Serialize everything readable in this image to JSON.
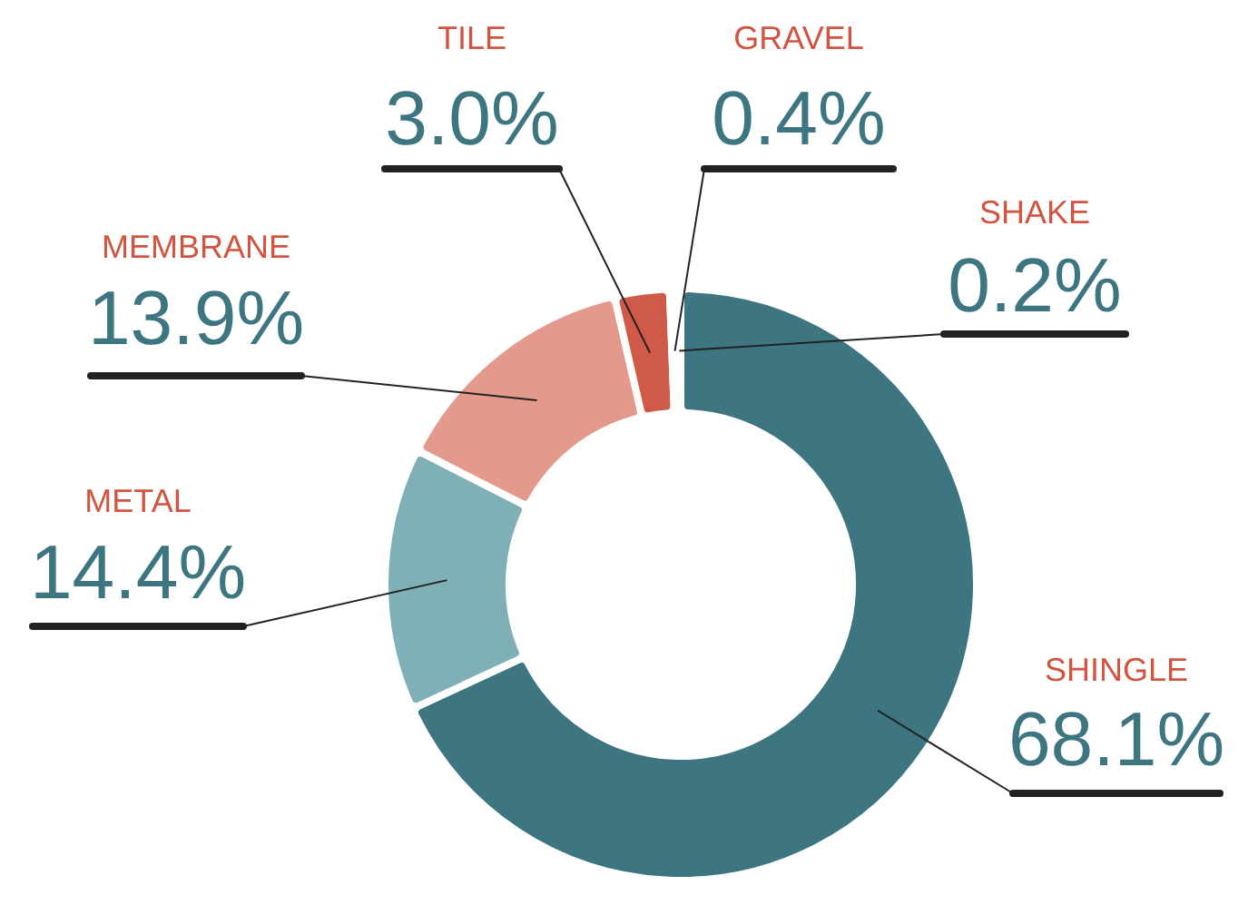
{
  "chart_data": {
    "type": "donut",
    "categories": [
      "SHINGLE",
      "METAL",
      "MEMBRANE",
      "TILE",
      "GRAVEL",
      "SHAKE"
    ],
    "values": [
      68.1,
      14.4,
      13.9,
      3.0,
      0.4,
      0.2
    ],
    "colors": [
      "#3d7580",
      "#7fb0b8",
      "#e39a8c",
      "#d05a48",
      "#5ca8b8",
      "#2e3f45"
    ],
    "value_labels": [
      "68.1%",
      "14.4%",
      "13.9%",
      "3.0%",
      "0.4%",
      "0.2%"
    ]
  }
}
